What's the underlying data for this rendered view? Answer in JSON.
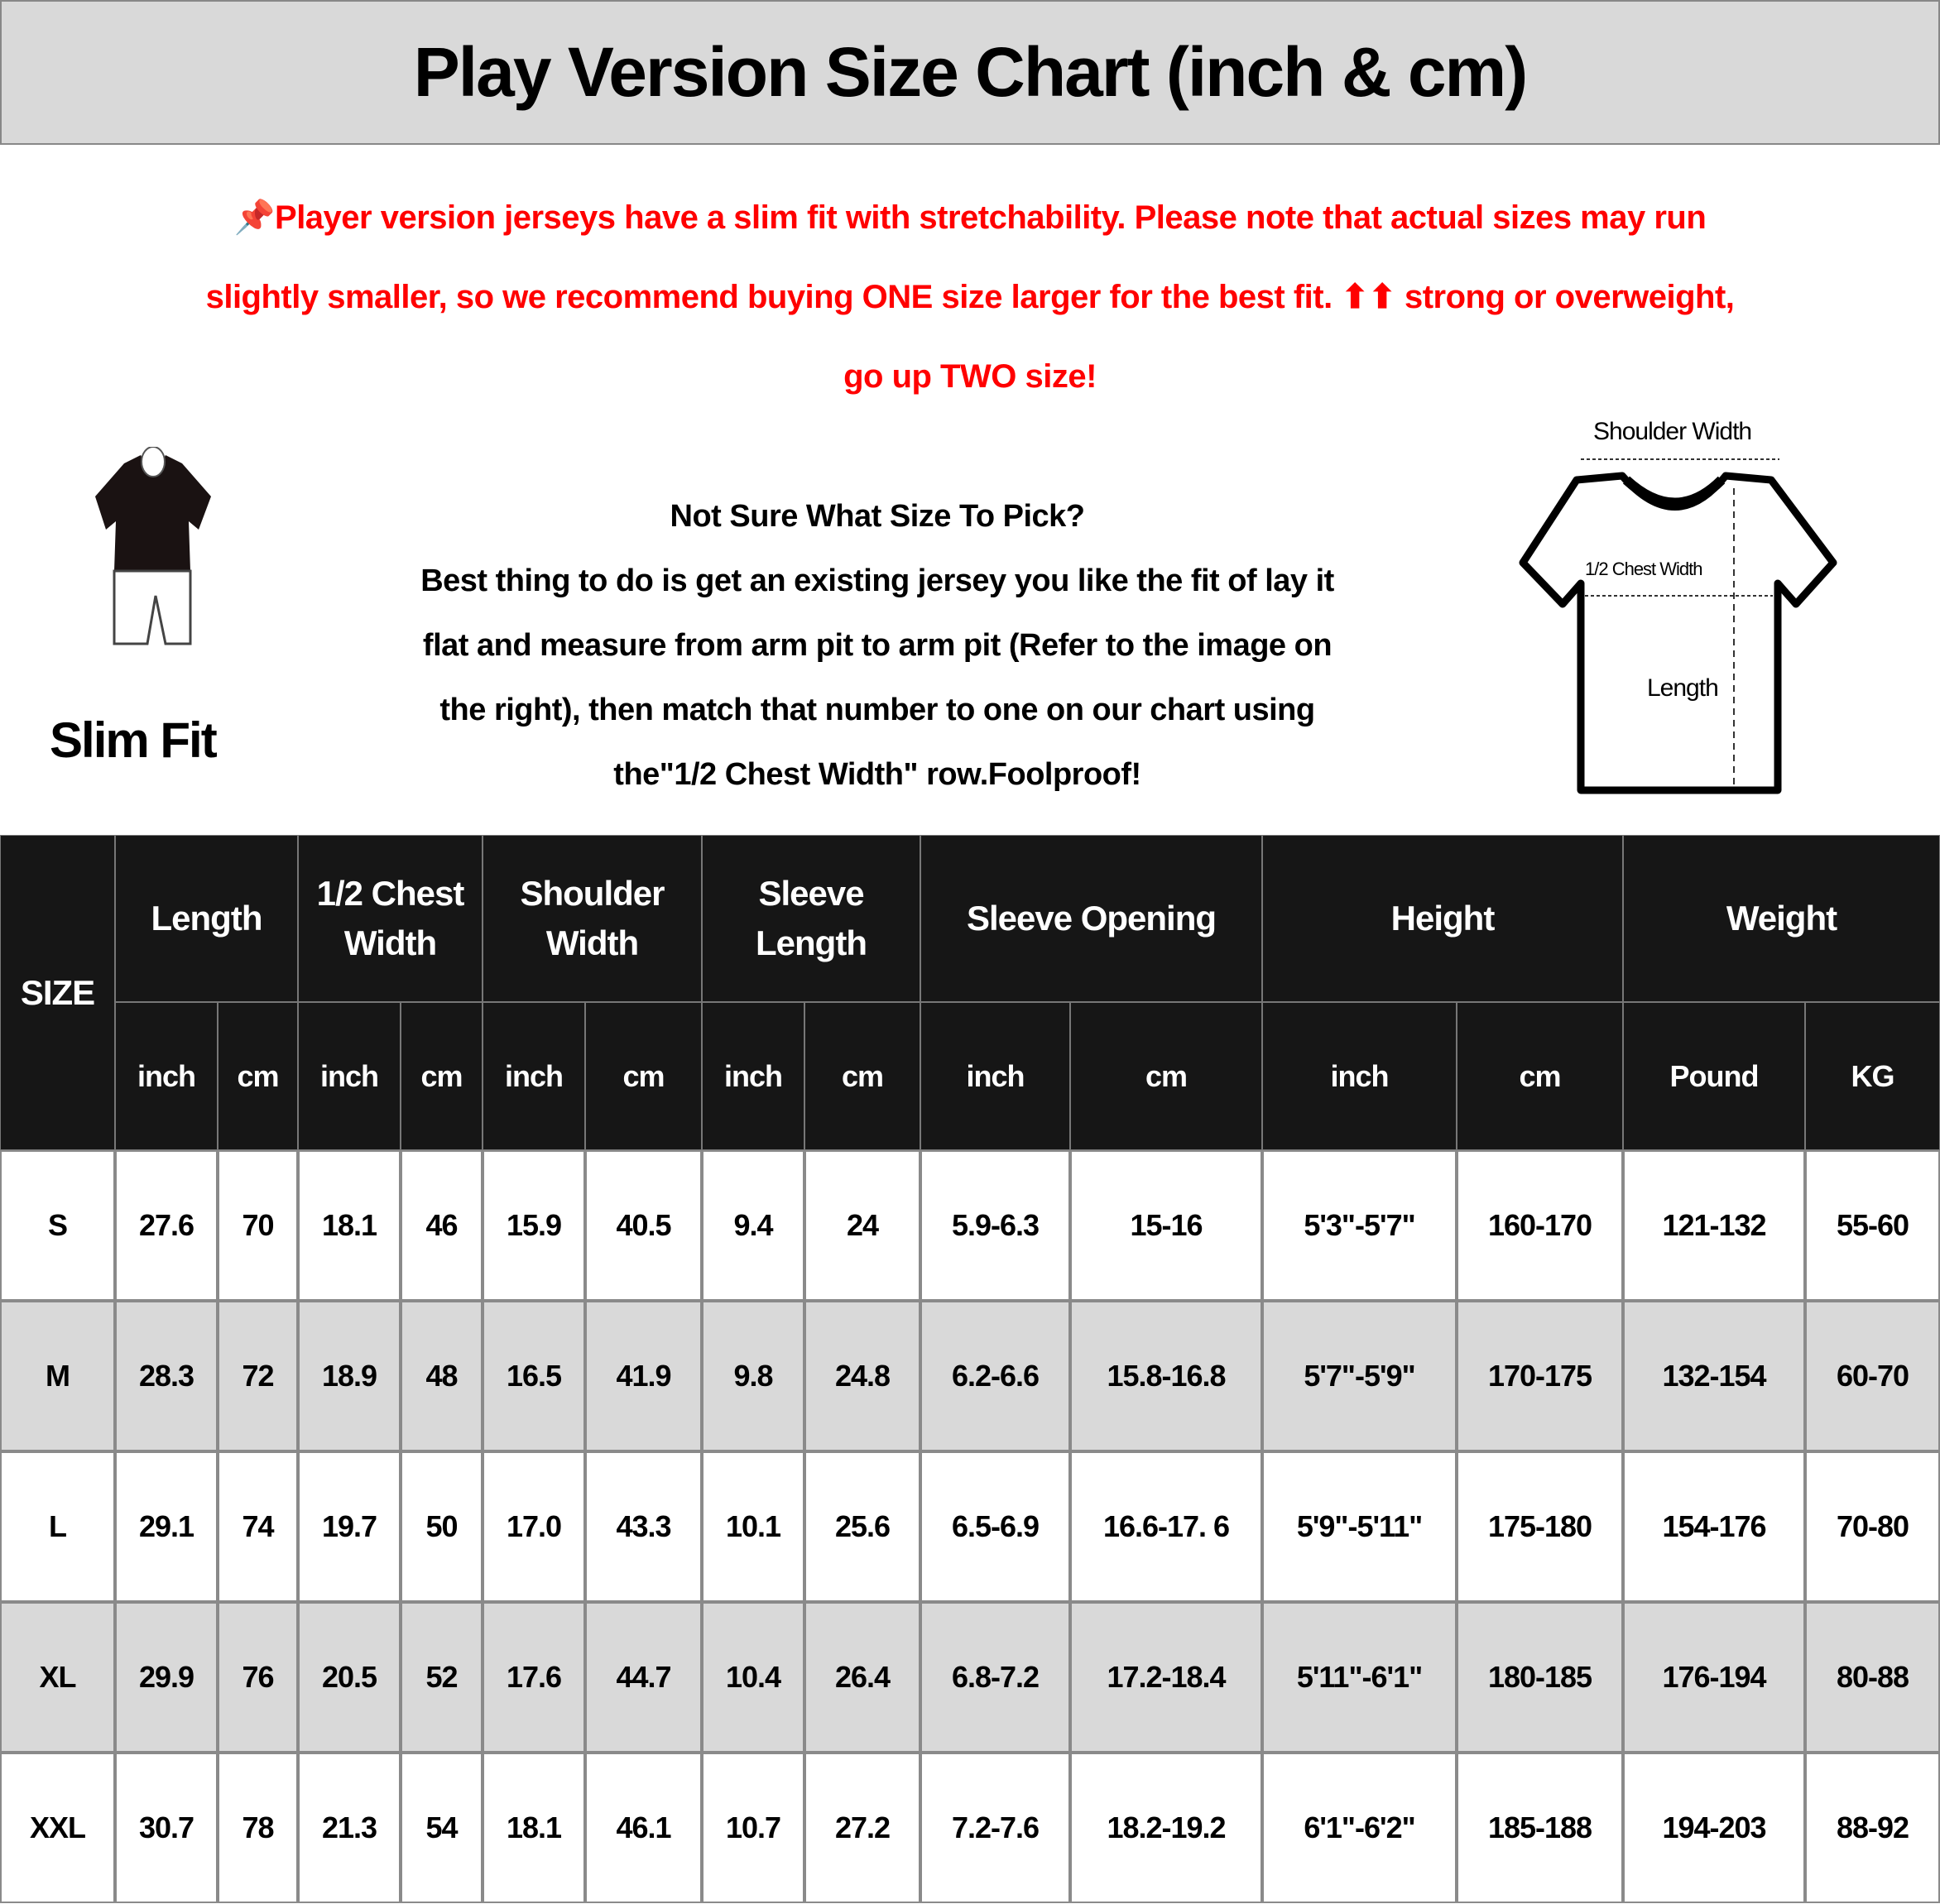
{
  "title": "Play Version Size Chart (inch & cm)",
  "notice": {
    "icon": "pushpin-icon",
    "color": "#ff0000",
    "lines": [
      "Player version jerseys have a slim fit with stretchability. Please note that actual sizes may run",
      "slightly smaller, so we recommend buying ONE size larger for the best fit. ⬆⬆ strong or overweight,",
      "go up TWO size!"
    ]
  },
  "fit_label": "Slim Fit",
  "help": {
    "heading": "Not Sure What Size To Pick?",
    "lines": [
      "Best thing to do is get an existing jersey you like the fit of lay it",
      "flat and measure from arm pit to arm pit (Refer to the image on",
      "the right), then match that number to one on our chart using",
      "the\"1/2 Chest Width\" row.Foolproof!"
    ]
  },
  "diagram": {
    "shoulder": "Shoulder Width",
    "chest": "1/2 Chest Width",
    "length": "Length"
  },
  "table": {
    "size_header": "SIZE",
    "groups": [
      "Length",
      "1/2 Chest Width",
      "Shoulder Width",
      "Sleeve Length",
      "Sleeve Opening",
      "Height",
      "Weight"
    ],
    "units": [
      "inch",
      "cm",
      "inch",
      "cm",
      "inch",
      "cm",
      "inch",
      "cm",
      "inch",
      "cm",
      "inch",
      "cm",
      "Pound",
      "KG"
    ],
    "rows": [
      [
        "S",
        "27.6",
        "70",
        "18.1",
        "46",
        "15.9",
        "40.5",
        "9.4",
        "24",
        "5.9-6.3",
        "15-16",
        "5'3\"-5'7\"",
        "160-170",
        "121-132",
        "55-60"
      ],
      [
        "M",
        "28.3",
        "72",
        "18.9",
        "48",
        "16.5",
        "41.9",
        "9.8",
        "24.8",
        "6.2-6.6",
        "15.8-16.8",
        "5'7\"-5'9\"",
        "170-175",
        "132-154",
        "60-70"
      ],
      [
        "L",
        "29.1",
        "74",
        "19.7",
        "50",
        "17.0",
        "43.3",
        "10.1",
        "25.6",
        "6.5-6.9",
        "16.6-17. 6",
        "5'9\"-5'11\"",
        "175-180",
        "154-176",
        "70-80"
      ],
      [
        "XL",
        "29.9",
        "76",
        "20.5",
        "52",
        "17.6",
        "44.7",
        "10.4",
        "26.4",
        "6.8-7.2",
        "17.2-18.4",
        "5'11\"-6'1\"",
        "180-185",
        "176-194",
        "80-88"
      ],
      [
        "XXL",
        "30.7",
        "78",
        "21.3",
        "54",
        "18.1",
        "46.1",
        "10.7",
        "27.2",
        "7.2-7.6",
        "18.2-19.2",
        "6'1\"-6'2\"",
        "185-188",
        "194-203",
        "88-92"
      ]
    ]
  }
}
